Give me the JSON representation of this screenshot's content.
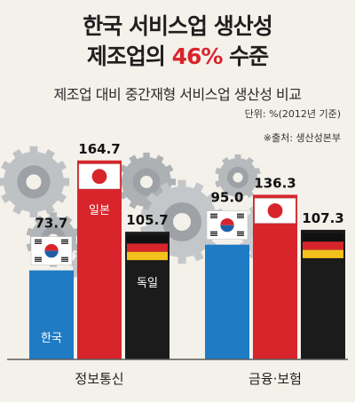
{
  "header": {
    "title_line1": "한국 서비스업 생산성",
    "title_line2_prefix": "제조업의 ",
    "title_line2_highlight": "46%",
    "title_line2_suffix": " 수준",
    "subtitle": "제조업 대비 중간재형 서비스업 생산성 비교",
    "unit": "단위: %(2012년 기준)",
    "source": "※출처: 생산성본부"
  },
  "chart_data": {
    "type": "bar",
    "title": "제조업 대비 중간재형 서비스업 생산성 비교",
    "categories": [
      "정보통신",
      "금융·보험"
    ],
    "series": [
      {
        "name": "한국",
        "values": [
          73.7,
          95.0
        ],
        "color": "#1f7bc4",
        "flag": "korea-flag-icon"
      },
      {
        "name": "일본",
        "values": [
          164.7,
          136.3
        ],
        "color": "#d7252b",
        "flag": "japan-flag-icon"
      },
      {
        "name": "독일",
        "values": [
          105.7,
          107.3
        ],
        "color": "#1b1b1b",
        "flag": "germany-flag-icon"
      }
    ],
    "value_labels": [
      [
        "73.7",
        "164.7",
        "105.7"
      ],
      [
        "95.0",
        "136.3",
        "107.3"
      ]
    ],
    "bar_labels": [
      [
        "한국",
        "일본",
        "독일"
      ],
      [
        "",
        "",
        ""
      ]
    ],
    "ylim": [
      0,
      180
    ],
    "grid": false,
    "legend": "none"
  },
  "colors": {
    "background": "#f4f1ea",
    "accent_red": "#d7252b",
    "korea_blue": "#1f7bc4",
    "germany_black": "#1b1b1b",
    "gear_gray": "#b9bcbf"
  }
}
